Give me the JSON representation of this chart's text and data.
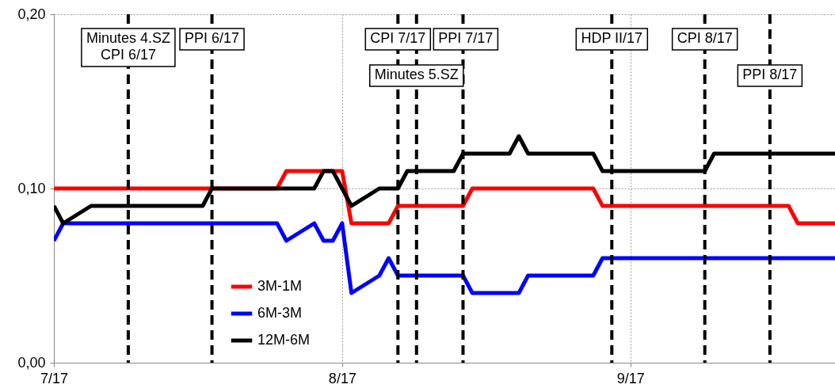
{
  "chart_data": {
    "type": "line",
    "xlim": [
      "2017-07-01",
      "2017-09-23"
    ],
    "xticks": [
      {
        "value": "2017-07-01",
        "label": "7/17"
      },
      {
        "value": "2017-08-01",
        "label": "8/17"
      },
      {
        "value": "2017-09-01",
        "label": "9/17"
      }
    ],
    "ylim": [
      0,
      0.2
    ],
    "yticks": [
      {
        "value": 0,
        "label": "0,00"
      },
      {
        "value": 0.1,
        "label": "0,10"
      },
      {
        "value": 0.2,
        "label": "0,20"
      }
    ],
    "grid": true,
    "legend": "bottom left",
    "series": [
      {
        "name": "3M-1M",
        "color": "#ff0000",
        "x": [
          "2017-07-01",
          "2017-07-25",
          "2017-07-26",
          "2017-08-01",
          "2017-08-02",
          "2017-08-06",
          "2017-08-07",
          "2017-08-14",
          "2017-08-15",
          "2017-08-28",
          "2017-08-29",
          "2017-09-18",
          "2017-09-19",
          "2017-09-23"
        ],
        "values": [
          0.1,
          0.1,
          0.11,
          0.11,
          0.08,
          0.08,
          0.09,
          0.09,
          0.1,
          0.1,
          0.09,
          0.09,
          0.08,
          0.08
        ]
      },
      {
        "name": "6M-3M",
        "color": "#0000ff",
        "x": [
          "2017-07-01",
          "2017-07-02",
          "2017-07-25",
          "2017-07-26",
          "2017-07-29",
          "2017-07-30",
          "2017-07-31",
          "2017-08-01",
          "2017-08-02",
          "2017-08-05",
          "2017-08-06",
          "2017-08-07",
          "2017-08-14",
          "2017-08-15",
          "2017-08-20",
          "2017-08-21",
          "2017-08-28",
          "2017-08-29",
          "2017-09-23"
        ],
        "values": [
          0.07,
          0.08,
          0.08,
          0.07,
          0.08,
          0.07,
          0.07,
          0.08,
          0.04,
          0.05,
          0.06,
          0.05,
          0.05,
          0.04,
          0.04,
          0.05,
          0.05,
          0.06,
          0.06
        ]
      },
      {
        "name": "12M-6M",
        "color": "#000000",
        "x": [
          "2017-07-01",
          "2017-07-02",
          "2017-07-05",
          "2017-07-17",
          "2017-07-18",
          "2017-07-29",
          "2017-07-30",
          "2017-07-31",
          "2017-08-02",
          "2017-08-05",
          "2017-08-07",
          "2017-08-08",
          "2017-08-13",
          "2017-08-14",
          "2017-08-19",
          "2017-08-20",
          "2017-08-21",
          "2017-08-28",
          "2017-08-29",
          "2017-09-09",
          "2017-09-10",
          "2017-09-23"
        ],
        "values": [
          0.09,
          0.08,
          0.09,
          0.09,
          0.1,
          0.1,
          0.11,
          0.11,
          0.09,
          0.1,
          0.1,
          0.11,
          0.11,
          0.12,
          0.12,
          0.13,
          0.12,
          0.12,
          0.11,
          0.11,
          0.12,
          0.12
        ]
      }
    ],
    "ref_lines": [
      {
        "axis": "x",
        "value": "2017-07-09",
        "label": "Minutes 4.SZ\nCPI 6/17",
        "color": "#000000",
        "line_style": "dashed"
      },
      {
        "axis": "x",
        "value": "2017-07-18",
        "label": "PPI 6/17",
        "color": "#000000",
        "line_style": "dashed"
      },
      {
        "axis": "x",
        "value": "2017-08-07",
        "label": "CPI 7/17",
        "color": "#000000",
        "line_style": "dashed"
      },
      {
        "axis": "x",
        "value": "2017-08-09",
        "label": "Minutes 5.SZ",
        "color": "#000000",
        "line_style": "dashed"
      },
      {
        "axis": "x",
        "value": "2017-08-14",
        "label": "PPI 7/17",
        "color": "#000000",
        "line_style": "dashed"
      },
      {
        "axis": "x",
        "value": "2017-08-30",
        "label": "HDP II/17",
        "color": "#000000",
        "line_style": "dashed"
      },
      {
        "axis": "x",
        "value": "2017-09-09",
        "label": "CPI 8/17",
        "color": "#000000",
        "line_style": "dashed"
      },
      {
        "axis": "x",
        "value": "2017-09-16",
        "label": "PPI 8/17",
        "color": "#000000",
        "line_style": "dashed"
      }
    ]
  }
}
